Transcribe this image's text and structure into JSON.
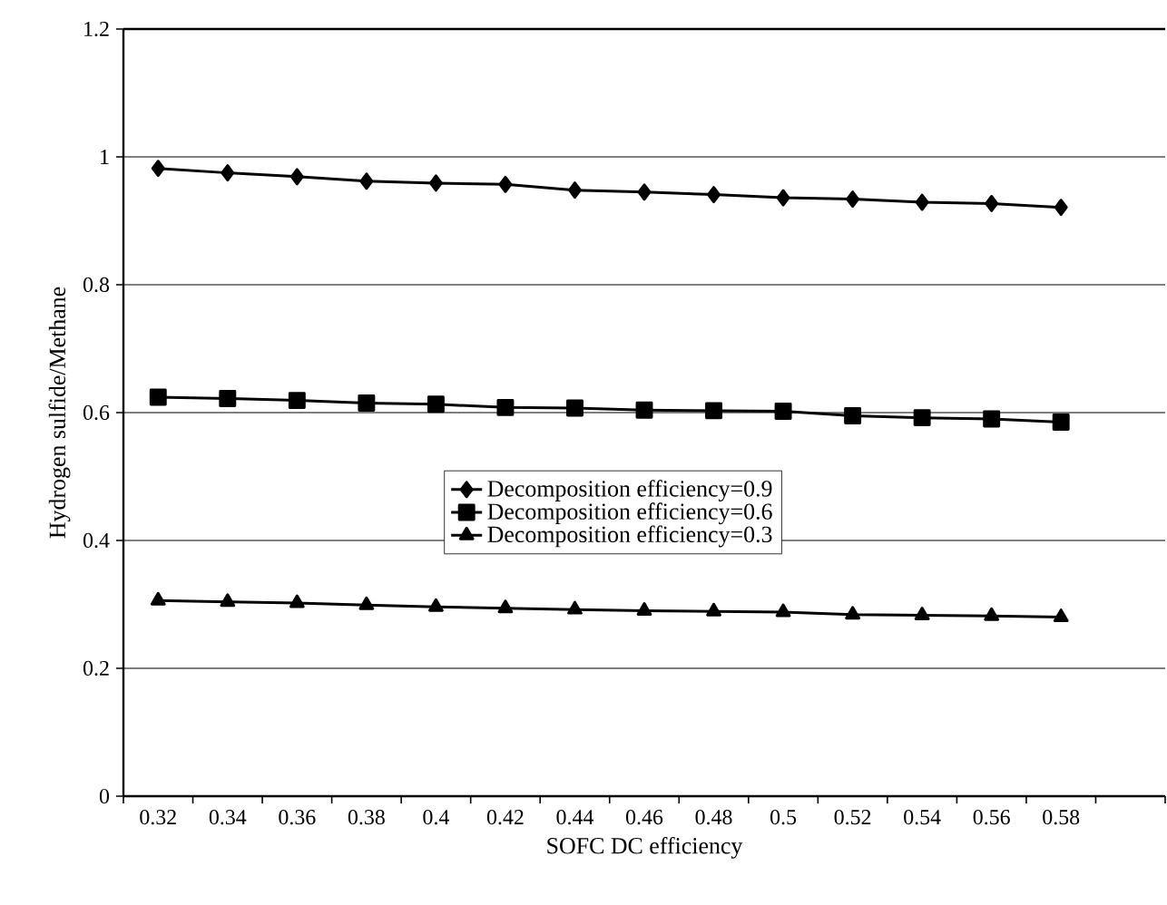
{
  "chart_data": {
    "type": "line",
    "xlabel": "SOFC DC efficiency",
    "ylabel": "Hydrogen sulfide/Methane",
    "categories": [
      "0.32",
      "0.34",
      "0.36",
      "0.38",
      "0.4",
      "0.42",
      "0.44",
      "0.46",
      "0.48",
      "0.5",
      "0.52",
      "0.54",
      "0.56",
      "0.58",
      null
    ],
    "series": [
      {
        "name": "Decomposition efficiency=0.9",
        "color": "#000000",
        "marker": "diamond",
        "values": [
          0.982,
          0.975,
          0.969,
          0.962,
          0.959,
          0.957,
          0.948,
          0.945,
          0.941,
          0.936,
          0.934,
          0.929,
          0.927,
          0.921,
          null
        ]
      },
      {
        "name": "Decomposition efficiency=0.6",
        "color": "#000000",
        "marker": "square",
        "values": [
          0.624,
          0.622,
          0.619,
          0.615,
          0.613,
          0.608,
          0.607,
          0.604,
          0.603,
          0.602,
          0.595,
          0.592,
          0.59,
          0.585,
          null
        ]
      },
      {
        "name": "Decomposition efficiency=0.3",
        "color": "#000000",
        "marker": "triangle",
        "values": [
          0.306,
          0.304,
          0.302,
          0.299,
          0.296,
          0.294,
          0.292,
          0.29,
          0.289,
          0.288,
          0.284,
          0.283,
          0.282,
          0.28,
          null
        ]
      }
    ],
    "ylim": [
      0,
      1.2
    ],
    "yticks": [
      0,
      0.2,
      0.4,
      0.6,
      0.8,
      1,
      1.2
    ],
    "grid": "y",
    "legend": "center",
    "line_style": "solid"
  }
}
